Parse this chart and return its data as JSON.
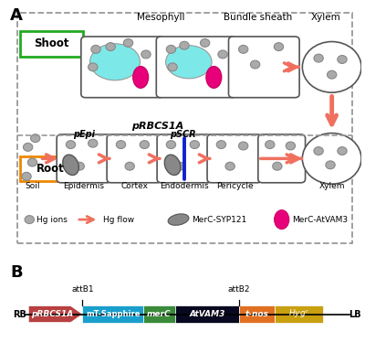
{
  "panel_A_label": "A",
  "panel_B_label": "B",
  "shoot_label": "Shoot",
  "root_label": "Root",
  "mesophyll_label": "Mesophyll",
  "bundle_sheath_label": "Bundle sheath",
  "xylem_label": "Xylem",
  "pRBCS1A_label": "pRBCS1A",
  "pEpi_label": "pEpi",
  "pSCR_label": "pSCR",
  "soil_label": "Soil",
  "epidermis_label": "Epidermis",
  "cortex_label": "Cortex",
  "endodermis_label": "Endodermis",
  "pericycle_label": "Pericycle",
  "xylem_root_label": "Xylem",
  "legend_hg_ions": "Hg ions",
  "legend_hg_flow": "Hg flow",
  "legend_merc_syp": "MerC-SYP121",
  "legend_merc_vam": "MerC-AtVAM3",
  "shoot_box_color": "#22aa22",
  "root_box_color": "#ee8800",
  "outer_box_color": "#999999",
  "cyan_color": "#7de8e8",
  "magenta_color": "#e8007a",
  "gray_merc": "#888888",
  "salmon_arrow": "#f07060",
  "blue_line_color": "#1122cc",
  "cell_border": "#555555",
  "background": "#ffffff",
  "construct_elements": [
    {
      "label": "pRBCS1A",
      "color": "#b84040",
      "text_color": "#ffffff"
    },
    {
      "label": "mT-Sapphire",
      "color": "#1a9fcc",
      "text_color": "#ffffff"
    },
    {
      "label": "merC",
      "color": "#3a8a3a",
      "text_color": "#ffffff"
    },
    {
      "label": "AtVAM3",
      "color": "#080820",
      "text_color": "#ffffff"
    },
    {
      "label": "t-nos",
      "color": "#e07020",
      "text_color": "#ffffff"
    },
    {
      "label": "Hygr",
      "color": "#c8a010",
      "text_color": "#ffffff"
    }
  ]
}
